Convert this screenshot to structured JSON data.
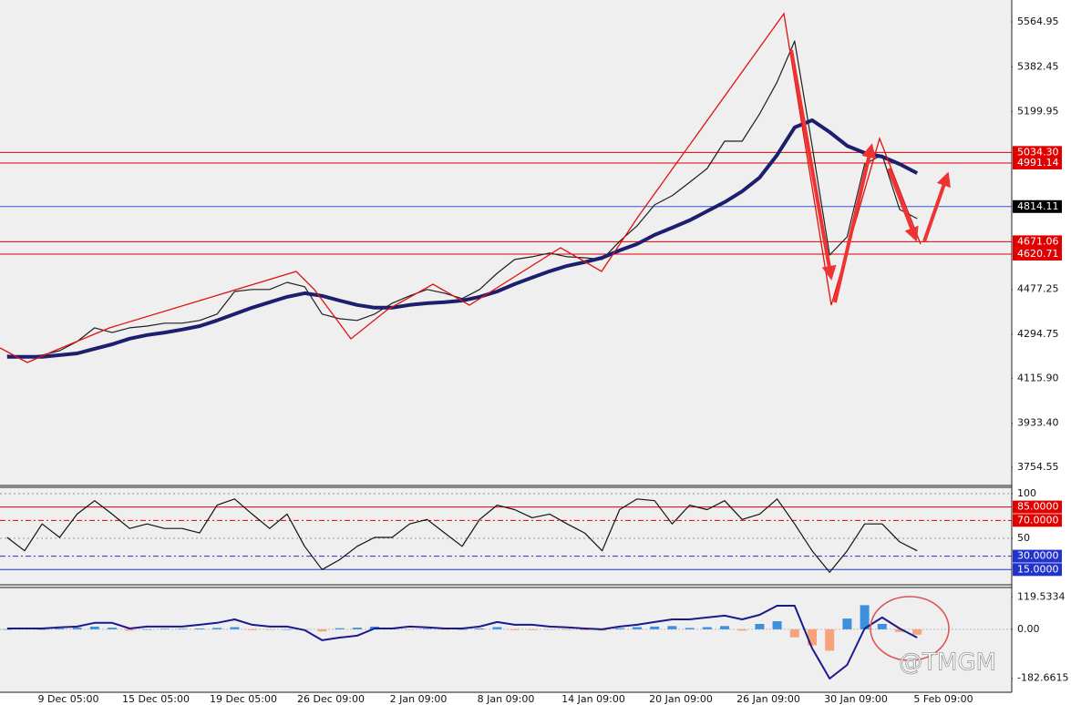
{
  "chart_data": [
    {
      "type": "line",
      "ylim": [
        3680,
        5654
      ],
      "yticks": [
        5564.95,
        5382.45,
        5199.95,
        4477.25,
        4294.75,
        {
          "value": 4115.9,
          "label": "4115.90"
        },
        {
          "value": 3933.4,
          "label": "3933.40"
        },
        3754.55
      ],
      "levels": [
        {
          "value": 5034.3,
          "label": "5034.30",
          "color": "#e00000"
        },
        {
          "value": 4991.14,
          "label": "4991.14",
          "color": "#e00000"
        },
        {
          "value": 4814.11,
          "label": "4814.11",
          "color": "#3355dd"
        },
        {
          "value": 4671.06,
          "label": "4671.06",
          "color": "#e00000"
        },
        {
          "value": 4620.71,
          "label": "4620.71",
          "color": "#e00000"
        }
      ],
      "series": [
        {
          "color": "#1f1f1f",
          "values": [
            4210,
            4203,
            4210,
            4228,
            4265,
            4321,
            4302,
            4321,
            4328,
            4340,
            4340,
            4351,
            4377,
            4469,
            4477,
            4477,
            4506,
            4488,
            4377,
            4358,
            4351,
            4377,
            4421,
            4451,
            4477,
            4462,
            4440,
            4477,
            4543,
            4599,
            4610,
            4625,
            4610,
            4606,
            4599,
            4673,
            4736,
            4821,
            4858,
            4913,
            4969,
            5080,
            5080,
            5191,
            5321,
            5487,
            5061,
            4617,
            4691,
            4987,
            5024,
            4802,
            4765
          ]
        },
        {
          "color": "#1c1f6e",
          "values": [
            4203,
            4203,
            4203,
            4210,
            4217,
            4236,
            4254,
            4277,
            4292,
            4302,
            4314,
            4328,
            4351,
            4377,
            4403,
            4425,
            4447,
            4462,
            4451,
            4432,
            4414,
            4403,
            4403,
            4414,
            4421,
            4425,
            4432,
            4447,
            4469,
            4499,
            4525,
            4551,
            4573,
            4588,
            4606,
            4636,
            4662,
            4699,
            4728,
            4758,
            4795,
            4832,
            4876,
            4932,
            5024,
            5136,
            5165,
            5117,
            5061,
            5032,
            5017,
            4987,
            4950
          ]
        }
      ]
    },
    {
      "type": "line",
      "ylim": [
        -2,
        107
      ],
      "yticks": [
        100,
        50
      ],
      "levels": [
        {
          "value": 85,
          "label": "85.0000",
          "color": "#e00000"
        },
        {
          "value": 70,
          "label": "70.0000",
          "color": "#e00000"
        },
        {
          "value": 30,
          "label": "30.0000",
          "color": "#2233cc"
        },
        {
          "value": 15,
          "label": "15.0000",
          "color": "#2233cc"
        }
      ],
      "series": [
        {
          "color": "#111111",
          "values": [
            51,
            36,
            66,
            51,
            77,
            92,
            77,
            61,
            66,
            61,
            61,
            56,
            87,
            94,
            77,
            61,
            77,
            41,
            15,
            26,
            41,
            51,
            51,
            66,
            71,
            56,
            41,
            71,
            87,
            82,
            73,
            77,
            66,
            56,
            36,
            82,
            94,
            92,
            66,
            87,
            82,
            92,
            71,
            77,
            94,
            66,
            36,
            12,
            36,
            66,
            66,
            46,
            36
          ]
        }
      ]
    },
    {
      "type": "bar",
      "categories": [
        null,
        "9 Dec 05:00",
        null,
        null,
        null,
        null,
        "15 Dec 05:00",
        null,
        null,
        null,
        null,
        "19 Dec 05:00",
        null,
        null,
        null,
        null,
        "26 Dec 09:00",
        null,
        null,
        null,
        null,
        "2 Jan 09:00",
        null,
        null,
        null,
        null,
        "8 Jan 09:00",
        null,
        null,
        null,
        null,
        "14 Jan 09:00",
        null,
        null,
        null,
        null,
        "20 Jan 09:00",
        null,
        null,
        null,
        null,
        "26 Jan 09:00",
        null,
        null,
        null,
        null,
        "30 Jan 09:00",
        null,
        null,
        null,
        null,
        "5 Feb 09:00",
        null
      ],
      "ylim": [
        -235,
        156
      ],
      "yticks": [
        119.5334,
        {
          "value": 0,
          "label": "0.00"
        },
        -182.6615
      ],
      "positive_color": "#3d8fe0",
      "negative_color": "#f7a27a",
      "values": [
        0,
        2,
        0,
        3,
        6,
        10,
        6,
        -5,
        0,
        2,
        2,
        3,
        5,
        8,
        -3,
        -2,
        0,
        -2,
        -8,
        4,
        6,
        10,
        3,
        -2,
        2,
        -2,
        0,
        3,
        8,
        -3,
        -3,
        -2,
        -3,
        -4,
        -5,
        4,
        8,
        10,
        12,
        5,
        8,
        12,
        -5,
        20,
        30,
        -30,
        -60,
        -80,
        40,
        90,
        20,
        -10,
        -20
      ],
      "series": [
        {
          "color": "#1a1a8c",
          "values": [
            3,
            3,
            3,
            7,
            10,
            24,
            24,
            3,
            10,
            10,
            10,
            17,
            24,
            37,
            17,
            10,
            10,
            -3,
            -41,
            -31,
            -24,
            3,
            3,
            10,
            7,
            3,
            3,
            10,
            27,
            17,
            17,
            10,
            7,
            3,
            0,
            10,
            17,
            27,
            37,
            37,
            44,
            51,
            37,
            54,
            88,
            88,
            -71,
            -184,
            -133,
            3,
            44,
            3,
            -31
          ]
        }
      ]
    }
  ],
  "watermark": "@TMGM"
}
